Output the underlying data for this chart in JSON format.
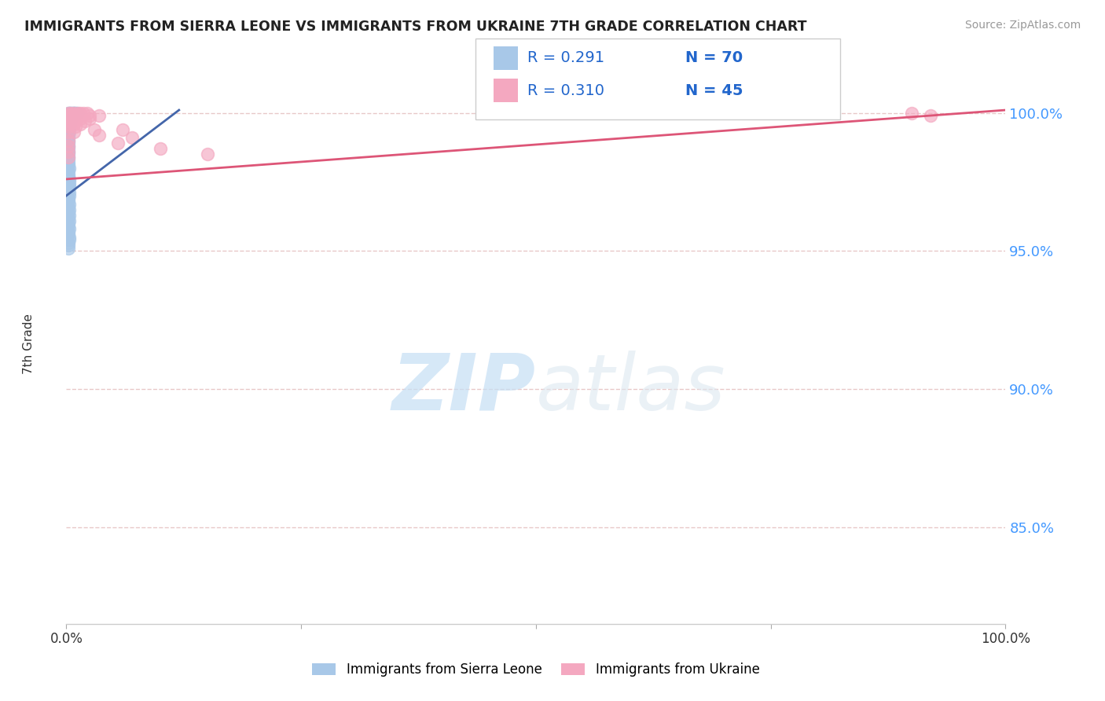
{
  "title": "IMMIGRANTS FROM SIERRA LEONE VS IMMIGRANTS FROM UKRAINE 7TH GRADE CORRELATION CHART",
  "source": "Source: ZipAtlas.com",
  "ylabel": "7th Grade",
  "ytick_labels": [
    "85.0%",
    "90.0%",
    "95.0%",
    "100.0%"
  ],
  "ytick_values": [
    0.85,
    0.9,
    0.95,
    1.0
  ],
  "xlim": [
    0.0,
    1.0
  ],
  "ylim": [
    0.815,
    1.018
  ],
  "color_sl": "#a8c8e8",
  "color_uk": "#f4a8c0",
  "trendline_sl": "#4466aa",
  "trendline_uk": "#dd5577",
  "legend_items": [
    "Immigrants from Sierra Leone",
    "Immigrants from Ukraine"
  ],
  "background_color": "#ffffff",
  "grid_color": "#e8c8c8",
  "ytick_color": "#4499ff",
  "sl_x": [
    0.002,
    0.003,
    0.004,
    0.005,
    0.006,
    0.007,
    0.008,
    0.009,
    0.01,
    0.011,
    0.002,
    0.003,
    0.004,
    0.005,
    0.006,
    0.002,
    0.003,
    0.004,
    0.005,
    0.002,
    0.003,
    0.004,
    0.002,
    0.003,
    0.002,
    0.003,
    0.002,
    0.003,
    0.002,
    0.002,
    0.002,
    0.002,
    0.002,
    0.002,
    0.002,
    0.002,
    0.002,
    0.002,
    0.002,
    0.002,
    0.003,
    0.002,
    0.002,
    0.002,
    0.003,
    0.003,
    0.003,
    0.003,
    0.002,
    0.003,
    0.003,
    0.002,
    0.002,
    0.003,
    0.002,
    0.003,
    0.002,
    0.003,
    0.002,
    0.003,
    0.002,
    0.002,
    0.003,
    0.002,
    0.002,
    0.003,
    0.003,
    0.002,
    0.002,
    0.002
  ],
  "sl_y": [
    1.0,
    1.0,
    1.0,
    1.0,
    1.0,
    1.0,
    1.0,
    1.0,
    1.0,
    1.0,
    0.999,
    0.999,
    0.999,
    0.999,
    0.999,
    0.998,
    0.998,
    0.998,
    0.998,
    0.997,
    0.997,
    0.997,
    0.996,
    0.996,
    0.995,
    0.995,
    0.994,
    0.993,
    0.992,
    0.991,
    0.99,
    0.989,
    0.988,
    0.987,
    0.986,
    0.985,
    0.984,
    0.983,
    0.982,
    0.981,
    0.98,
    0.979,
    0.978,
    0.977,
    0.976,
    0.975,
    0.974,
    0.973,
    0.972,
    0.971,
    0.97,
    0.969,
    0.968,
    0.967,
    0.966,
    0.965,
    0.964,
    0.963,
    0.962,
    0.961,
    0.96,
    0.959,
    0.958,
    0.957,
    0.956,
    0.955,
    0.954,
    0.953,
    0.952,
    0.951
  ],
  "uk_x": [
    0.002,
    0.005,
    0.008,
    0.012,
    0.015,
    0.018,
    0.022,
    0.002,
    0.004,
    0.006,
    0.008,
    0.012,
    0.016,
    0.025,
    0.035,
    0.002,
    0.005,
    0.008,
    0.015,
    0.025,
    0.002,
    0.005,
    0.01,
    0.02,
    0.002,
    0.008,
    0.015,
    0.002,
    0.01,
    0.03,
    0.06,
    0.002,
    0.008,
    0.035,
    0.07,
    0.002,
    0.055,
    0.002,
    0.1,
    0.002,
    0.15,
    0.002,
    0.9,
    0.92
  ],
  "uk_y": [
    1.0,
    1.0,
    1.0,
    1.0,
    1.0,
    1.0,
    1.0,
    0.999,
    0.999,
    0.999,
    0.999,
    0.999,
    0.999,
    0.999,
    0.999,
    0.998,
    0.998,
    0.998,
    0.998,
    0.998,
    0.997,
    0.997,
    0.997,
    0.997,
    0.996,
    0.996,
    0.996,
    0.995,
    0.995,
    0.994,
    0.994,
    0.993,
    0.993,
    0.992,
    0.991,
    0.99,
    0.989,
    0.988,
    0.987,
    0.986,
    0.985,
    0.984,
    1.0,
    0.999
  ],
  "sl_trend_x": [
    0.0,
    0.12
  ],
  "sl_trend_y": [
    0.97,
    1.001
  ],
  "uk_trend_x": [
    0.0,
    1.0
  ],
  "uk_trend_y": [
    0.976,
    1.001
  ]
}
